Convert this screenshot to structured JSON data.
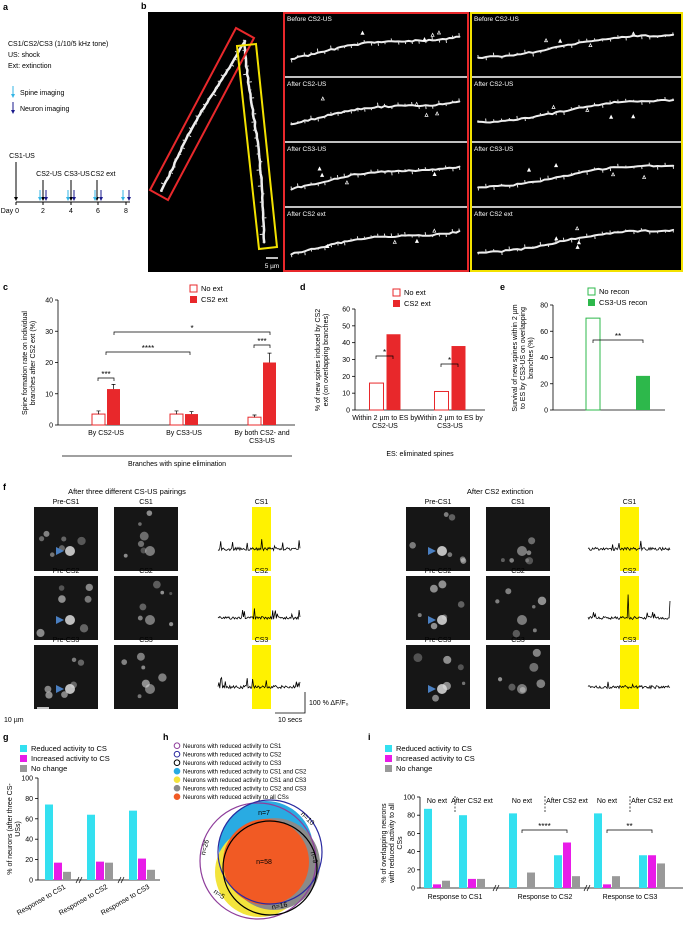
{
  "panel_labels": [
    "a",
    "b",
    "c",
    "d",
    "e",
    "f",
    "g",
    "h",
    "i"
  ],
  "panel_a": {
    "protocol": [
      "CS1/CS2/CS3 (1/10/5 kHz tone)",
      "US: shock",
      "Ext: extinction"
    ],
    "imaging": [
      "Spine imaging",
      "Neuron imaging"
    ],
    "events": [
      "CS1-US",
      "CS2-US",
      "CS3-US",
      "CS2 ext"
    ],
    "days": [
      "Day 0",
      "2",
      "4",
      "6",
      "8"
    ]
  },
  "panel_b": {
    "red_column": [
      "Before CS2-US",
      "After CS2-US",
      "After CS3-US",
      "After CS2 ext"
    ],
    "yellow_column": [
      "Before CS2-US",
      "After CS2-US",
      "After CS3-US",
      "After CS2 ext"
    ],
    "scale_bar": "5 µm"
  },
  "panel_f": {
    "titles": [
      "After three different CS-US pairings",
      "After CS2 extinction"
    ],
    "image_labels": [
      "Pre-CS1",
      "CS1",
      "Pre-CS2",
      "CS2",
      "Pre-CS3",
      "CS3"
    ],
    "trace_labels": [
      "CS1",
      "CS2",
      "CS3"
    ],
    "scale_bars": [
      "10 µm",
      "100 % ΔF/F₀",
      "10 secs"
    ]
  },
  "panel_h": {
    "legend": [
      {
        "label": "Neurons with reduced activity to CS1",
        "color": "#8e3d9b"
      },
      {
        "label": "Neurons with reduced activity to CS2",
        "color": "#2a2aa0"
      },
      {
        "label": "Neurons with reduced activity to CS3",
        "color": "#000000"
      },
      {
        "label": "Neurons with reduced activity to CS1 and CS2",
        "color": "#29abe2"
      },
      {
        "label": "Neurons with reduced activity to CS1 and CS3",
        "color": "#f3e43c"
      },
      {
        "label": "Neurons with reduced activity to CS2 and CS3",
        "color": "#8a8a8a"
      },
      {
        "label": "Neurons with reduced activity to all CSs",
        "color": "#f15a24"
      }
    ],
    "counts": [
      "n=7",
      "n=10",
      "n=26",
      "n=58",
      "n=9",
      "n=5",
      "n=16"
    ]
  },
  "chart_data": [
    {
      "type": "bar",
      "categories": [
        "By CS2-US",
        "By CS3-US",
        "By both CS2- and CS3-US"
      ],
      "series": [
        {
          "name": "No ext",
          "color": "#e8282b",
          "filled": false,
          "values": [
            3.5,
            3.5,
            2.5
          ],
          "errors": [
            1,
            1,
            0.7
          ]
        },
        {
          "name": "CS2 ext",
          "color": "#e8282b",
          "filled": true,
          "values": [
            11.5,
            3.5,
            20
          ],
          "errors": [
            1.5,
            0.8,
            3
          ]
        }
      ],
      "ylim": [
        0,
        40
      ],
      "yticks": [
        0,
        10,
        20,
        30,
        40
      ],
      "y_label": "Spine formation rate on individual branches after CS2 ext (%)",
      "x_label": "Branches with spine elimination",
      "annotations": [
        "***",
        "****",
        "*",
        "***"
      ]
    },
    {
      "type": "bar",
      "categories": [
        "Within 2 µm to ES by CS2-US",
        "Within 2 µm to ES by CS3-US"
      ],
      "series": [
        {
          "name": "No ext",
          "color": "#e8282b",
          "filled": false,
          "values": [
            16,
            11
          ]
        },
        {
          "name": "CS2 ext",
          "color": "#e8282b",
          "filled": true,
          "values": [
            45,
            38
          ]
        }
      ],
      "ylim": [
        0,
        60
      ],
      "yticks": [
        0,
        10,
        20,
        30,
        40,
        50,
        60
      ],
      "y_label": "% of new spines induced by CS2 ext (on overlapping branches)",
      "note": "ES: eliminated spines",
      "annotations": [
        "*",
        "*"
      ]
    },
    {
      "type": "bar",
      "categories": [
        null
      ],
      "series": [
        {
          "name": "No recon",
          "color": "#2db84b",
          "filled": false,
          "values": [
            70
          ]
        },
        {
          "name": "CS3-US recon",
          "color": "#2db84b",
          "filled": true,
          "values": [
            26
          ]
        }
      ],
      "ylim": [
        0,
        80
      ],
      "yticks": [
        0,
        20,
        40,
        60,
        80
      ],
      "y_label": "Survival of new spines within 2 µm to ES by CS3-US on overlapping branches (%)",
      "annotations": [
        "**"
      ]
    },
    {
      "type": "bar",
      "categories": [
        "Response to CS1",
        "Response to CS2",
        "Response to CS3"
      ],
      "series": [
        {
          "name": "Reduced activity to CS",
          "color": "#33e0f0",
          "values": [
            74,
            64,
            68
          ]
        },
        {
          "name": "Increased activity to CS",
          "color": "#e81be8",
          "values": [
            17,
            18,
            21
          ]
        },
        {
          "name": "No change",
          "color": "#999999",
          "values": [
            8,
            17,
            10
          ]
        }
      ],
      "ylim": [
        0,
        100
      ],
      "yticks": [
        0,
        20,
        40,
        60,
        80,
        100
      ],
      "y_label": "% of neurons (after three CS-USs)"
    },
    {
      "type": "bar",
      "categories": [
        "No ext",
        "After CS2 ext",
        "No ext",
        "After CS2 ext",
        "No ext",
        "After CS2 ext"
      ],
      "groups": [
        "Response to CS1",
        "Response to CS2",
        "Response to CS3"
      ],
      "series": [
        {
          "name": "Reduced activity to CS",
          "color": "#33e0f0",
          "values": [
            87,
            80,
            82,
            36,
            82,
            36
          ]
        },
        {
          "name": "Increased activity to CS",
          "color": "#e81be8",
          "values": [
            4,
            10,
            0,
            50,
            4,
            36
          ]
        },
        {
          "name": "No change",
          "color": "#999999",
          "values": [
            8,
            10,
            17,
            13,
            13,
            27
          ]
        }
      ],
      "ylim": [
        0,
        100
      ],
      "yticks": [
        0,
        20,
        40,
        60,
        80,
        100
      ],
      "y_label": "% of overlapping neurons with reduced activity to all CSs",
      "annotations": [
        "****",
        "**"
      ]
    }
  ]
}
